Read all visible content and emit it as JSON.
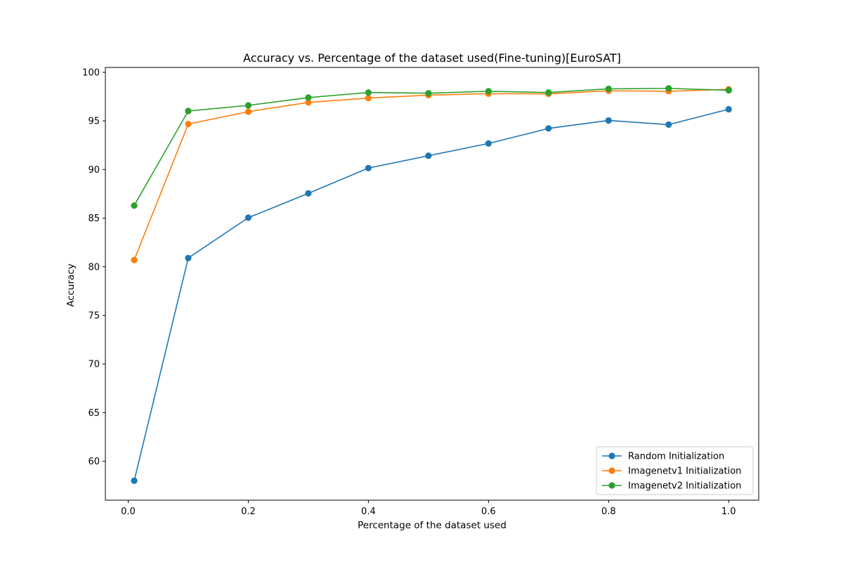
{
  "chart_data": {
    "type": "line",
    "title": "Accuracy vs. Percentage of the dataset used(Fine-tuning)[EuroSAT]",
    "xlabel": "Percentage of the dataset used",
    "ylabel": "Accuracy",
    "xlim": [
      -0.038,
      1.05
    ],
    "ylim": [
      56.0,
      100.5
    ],
    "xticks": [
      0.0,
      0.2,
      0.4,
      0.6,
      0.8,
      1.0
    ],
    "xtick_labels": [
      "0.0",
      "0.2",
      "0.4",
      "0.6",
      "0.8",
      "1.0"
    ],
    "yticks": [
      60,
      65,
      70,
      75,
      80,
      85,
      90,
      95,
      100
    ],
    "ytick_labels": [
      "60",
      "65",
      "70",
      "75",
      "80",
      "85",
      "90",
      "95",
      "100"
    ],
    "grid": false,
    "legend_position": "lower right",
    "x": [
      0.01,
      0.1,
      0.2,
      0.3,
      0.4,
      0.5,
      0.6,
      0.7,
      0.8,
      0.9,
      1.0
    ],
    "series": [
      {
        "name": "Random Initialization",
        "color": "#1f77b4",
        "values": [
          58.0,
          80.9,
          85.05,
          87.55,
          90.15,
          91.42,
          92.68,
          94.23,
          95.05,
          94.62,
          96.2
        ]
      },
      {
        "name": "Imagenetv1 Initialization",
        "color": "#ff7f0e",
        "values": [
          80.7,
          94.68,
          95.95,
          96.9,
          97.35,
          97.65,
          97.8,
          97.78,
          98.1,
          98.05,
          98.25
        ]
      },
      {
        "name": "Imagenetv2 Initialization",
        "color": "#2ca02c",
        "values": [
          86.3,
          96.02,
          96.6,
          97.4,
          97.92,
          97.85,
          98.05,
          97.92,
          98.3,
          98.35,
          98.15
        ]
      }
    ]
  }
}
